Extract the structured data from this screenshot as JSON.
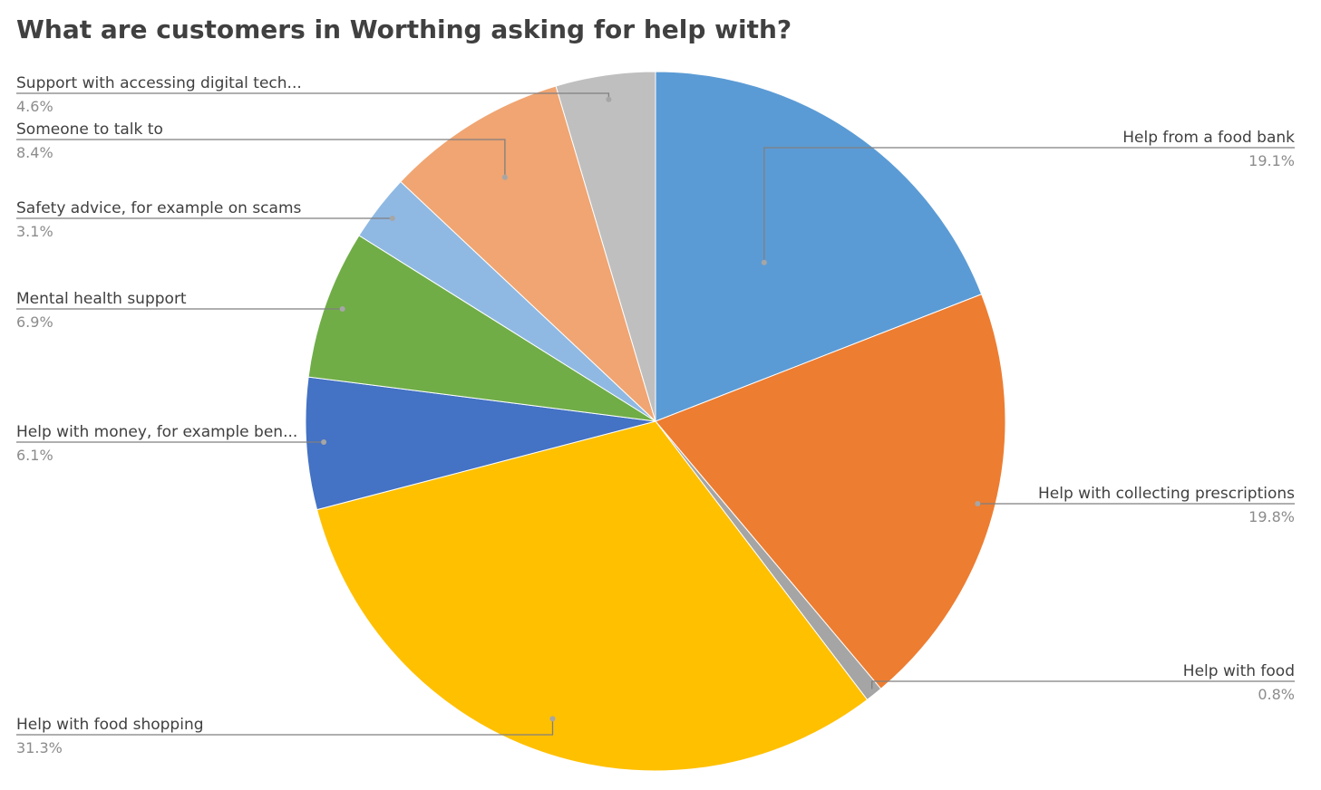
{
  "chart_data": {
    "type": "pie",
    "title": "What are customers in Worthing asking for help with?",
    "slices": [
      {
        "label": "Help from a food bank",
        "value": 19.1,
        "value_label": "19.1%",
        "color": "#5b9bd5"
      },
      {
        "label": "Help with collecting prescriptions",
        "value": 19.8,
        "value_label": "19.8%",
        "color": "#ed7d31"
      },
      {
        "label": "Help with food",
        "value": 0.8,
        "value_label": "0.8%",
        "color": "#a5a5a5"
      },
      {
        "label": "Help with food shopping",
        "value": 31.3,
        "value_label": "31.3%",
        "color": "#ffc000"
      },
      {
        "label": "Help with money, for example ben...",
        "value": 6.1,
        "value_label": "6.1%",
        "color": "#4472c4"
      },
      {
        "label": "Mental health support",
        "value": 6.9,
        "value_label": "6.9%",
        "color": "#70ad47"
      },
      {
        "label": "Safety advice, for example on scams",
        "value": 3.1,
        "value_label": "3.1%",
        "color": "#8fb9e3"
      },
      {
        "label": "Someone to talk to",
        "value": 8.4,
        "value_label": "8.4%",
        "color": "#f0a572"
      },
      {
        "label": "Support with accessing digital tech...",
        "value": 4.6,
        "value_label": "4.6%",
        "color": "#bfbfbf"
      }
    ],
    "start_angle": "top",
    "direction": "clockwise",
    "legend": "none"
  }
}
